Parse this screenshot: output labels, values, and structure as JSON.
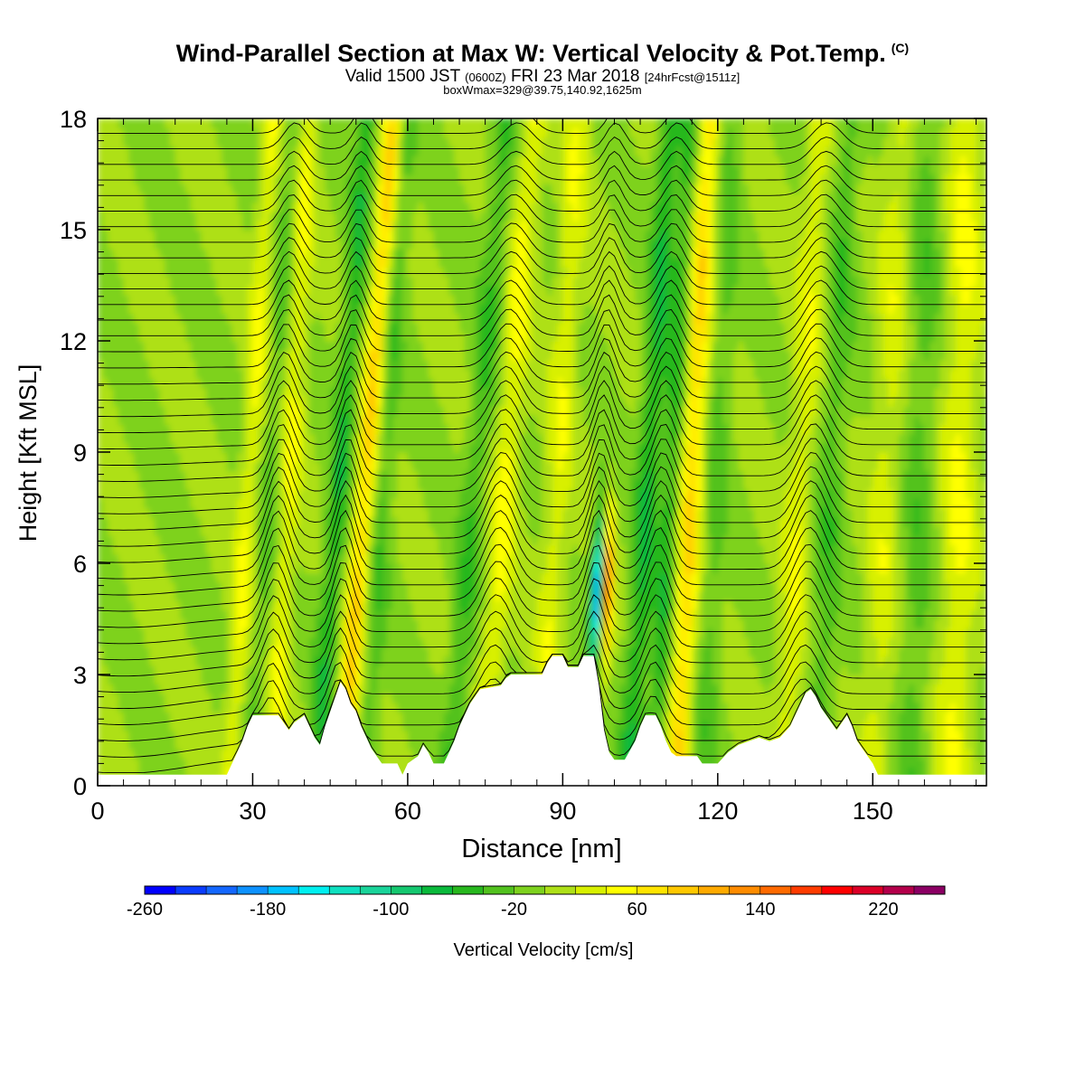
{
  "title": "Wind-Parallel Section at Max W: Vertical Velocity & Pot.Temp.",
  "title_mark": "(C)",
  "subtitle_main": "Valid 1500 JST",
  "subtitle_z": "(0600Z)",
  "subtitle_date": "FRI 23 Mar 2018",
  "subtitle_fcst": "[24hrFcst@1511z]",
  "subtitle_box": "boxWmax=329@39.75,140.92,1625m",
  "chart_data": {
    "type": "heatmap",
    "xlabel": "Distance [nm]",
    "ylabel": "Height [Kft MSL]",
    "xlim": [
      0,
      172
    ],
    "ylim": [
      0,
      18
    ],
    "xticks": [
      0,
      30,
      60,
      90,
      120,
      150
    ],
    "yticks": [
      0,
      3,
      6,
      9,
      12,
      15,
      18
    ],
    "xtick_labels": [
      "0",
      "30",
      "60",
      "90",
      "120",
      "150"
    ],
    "ytick_labels": [
      "0",
      "3",
      "6",
      "9",
      "12",
      "15",
      "18"
    ],
    "colorbar": {
      "label": "Vertical Velocity [cm/s]",
      "min": -260,
      "max": 260,
      "step": 20,
      "tick_values": [
        -260,
        -180,
        -100,
        -20,
        60,
        140,
        220
      ],
      "tick_labels": [
        "-260",
        "-180",
        "-100",
        "-20",
        "60",
        "140",
        "220"
      ],
      "colors": [
        "#0000ff",
        "#0a3cff",
        "#1467ff",
        "#0e92ff",
        "#00c2ff",
        "#00f0f0",
        "#0fe0c0",
        "#1ad49a",
        "#15c870",
        "#0aba3c",
        "#28b81e",
        "#52c21e",
        "#7ed21e",
        "#aee018",
        "#d8f000",
        "#ffff00",
        "#ffe400",
        "#ffc800",
        "#ffaa00",
        "#ff8c00",
        "#ff6a00",
        "#ff3c00",
        "#ff0000",
        "#dc0028",
        "#b4004b",
        "#8c0064",
        "#6e0082"
      ]
    },
    "terrain_kft": [
      [
        0,
        0.3
      ],
      [
        25,
        0.3
      ],
      [
        26,
        0.6
      ],
      [
        27,
        0.9
      ],
      [
        28,
        1.2
      ],
      [
        29,
        1.6
      ],
      [
        30,
        1.9
      ],
      [
        35,
        1.9
      ],
      [
        36,
        1.7
      ],
      [
        37,
        1.5
      ],
      [
        38,
        1.7
      ],
      [
        40,
        1.9
      ],
      [
        41,
        1.6
      ],
      [
        42,
        1.3
      ],
      [
        43,
        1.1
      ],
      [
        44,
        1.6
      ],
      [
        45,
        2.0
      ],
      [
        46,
        2.4
      ],
      [
        47,
        2.8
      ],
      [
        48,
        2.6
      ],
      [
        49,
        2.2
      ],
      [
        50,
        2.0
      ],
      [
        51,
        1.6
      ],
      [
        52,
        1.3
      ],
      [
        53,
        1.0
      ],
      [
        54,
        0.8
      ],
      [
        55,
        0.6
      ],
      [
        58,
        0.6
      ],
      [
        59,
        0.3
      ],
      [
        60,
        0.6
      ],
      [
        62,
        0.8
      ],
      [
        63,
        1.1
      ],
      [
        64,
        0.9
      ],
      [
        65,
        0.6
      ],
      [
        67,
        0.6
      ],
      [
        68,
        0.9
      ],
      [
        69,
        1.2
      ],
      [
        70,
        1.6
      ],
      [
        71,
        1.9
      ],
      [
        72,
        2.2
      ],
      [
        73,
        2.4
      ],
      [
        74,
        2.6
      ],
      [
        78,
        2.7
      ],
      [
        79,
        2.9
      ],
      [
        80,
        3.0
      ],
      [
        86,
        3.0
      ],
      [
        87,
        3.3
      ],
      [
        88,
        3.5
      ],
      [
        90,
        3.5
      ],
      [
        91,
        3.2
      ],
      [
        93,
        3.2
      ],
      [
        94,
        3.5
      ],
      [
        96,
        3.5
      ],
      [
        97,
        2.7
      ],
      [
        98,
        1.5
      ],
      [
        99,
        0.9
      ],
      [
        100,
        0.7
      ],
      [
        102,
        0.7
      ],
      [
        104,
        1.2
      ],
      [
        105,
        1.6
      ],
      [
        106,
        1.9
      ],
      [
        108,
        1.9
      ],
      [
        109,
        1.6
      ],
      [
        110,
        1.2
      ],
      [
        111,
        0.9
      ],
      [
        112,
        0.8
      ],
      [
        116,
        0.8
      ],
      [
        117,
        0.6
      ],
      [
        120,
        0.6
      ],
      [
        122,
        0.9
      ],
      [
        124,
        1.1
      ],
      [
        126,
        1.2
      ],
      [
        128,
        1.3
      ],
      [
        130,
        1.2
      ],
      [
        132,
        1.3
      ],
      [
        134,
        1.6
      ],
      [
        135,
        1.9
      ],
      [
        136,
        2.2
      ],
      [
        137,
        2.5
      ],
      [
        138,
        2.6
      ],
      [
        139,
        2.4
      ],
      [
        140,
        2.1
      ],
      [
        141,
        1.9
      ],
      [
        142,
        1.7
      ],
      [
        143,
        1.5
      ],
      [
        145,
        1.9
      ],
      [
        146,
        1.6
      ],
      [
        147,
        1.2
      ],
      [
        148,
        1.0
      ],
      [
        149,
        0.8
      ],
      [
        150,
        0.6
      ],
      [
        151,
        0.3
      ],
      [
        172,
        0.3
      ]
    ],
    "contour_levels_C": [
      -14,
      -12,
      -10,
      -8,
      -6,
      -4,
      -2,
      0,
      2,
      4,
      6,
      8,
      10,
      12,
      14,
      16,
      18,
      20,
      22,
      24,
      26,
      28,
      30,
      32,
      34,
      36,
      38,
      40,
      42,
      44,
      46,
      48,
      50,
      52,
      54,
      56,
      58
    ]
  }
}
